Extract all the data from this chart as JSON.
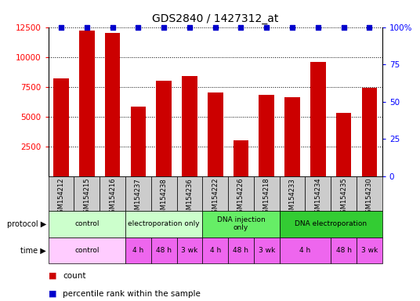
{
  "title": "GDS2840 / 1427312_at",
  "samples": [
    "GSM154212",
    "GSM154215",
    "GSM154216",
    "GSM154237",
    "GSM154238",
    "GSM154236",
    "GSM154222",
    "GSM154226",
    "GSM154218",
    "GSM154233",
    "GSM154234",
    "GSM154235",
    "GSM154230"
  ],
  "counts": [
    8200,
    12200,
    12000,
    5800,
    8000,
    8400,
    7000,
    3000,
    6800,
    6600,
    9600,
    5300,
    7400
  ],
  "bar_color": "#cc0000",
  "dot_color": "#0000cc",
  "ylim_left": [
    0,
    12500
  ],
  "ylim_right": [
    0,
    100
  ],
  "yticks_left": [
    2500,
    5000,
    7500,
    10000,
    12500
  ],
  "yticks_right": [
    0,
    25,
    50,
    75,
    100
  ],
  "protocol_defs": [
    {
      "label": "control",
      "start": 0,
      "end": 3,
      "color": "#ccffcc"
    },
    {
      "label": "electroporation only",
      "start": 3,
      "end": 6,
      "color": "#ccffcc"
    },
    {
      "label": "DNA injection\nonly",
      "start": 6,
      "end": 9,
      "color": "#66ee66"
    },
    {
      "label": "DNA electroporation",
      "start": 9,
      "end": 13,
      "color": "#33cc33"
    }
  ],
  "time_defs": [
    {
      "label": "control",
      "start": 0,
      "end": 3,
      "color": "#ffccff"
    },
    {
      "label": "4 h",
      "start": 3,
      "end": 4,
      "color": "#ee66ee"
    },
    {
      "label": "48 h",
      "start": 4,
      "end": 5,
      "color": "#ee66ee"
    },
    {
      "label": "3 wk",
      "start": 5,
      "end": 6,
      "color": "#ee66ee"
    },
    {
      "label": "4 h",
      "start": 6,
      "end": 7,
      "color": "#ee66ee"
    },
    {
      "label": "48 h",
      "start": 7,
      "end": 8,
      "color": "#ee66ee"
    },
    {
      "label": "3 wk",
      "start": 8,
      "end": 9,
      "color": "#ee66ee"
    },
    {
      "label": "4 h",
      "start": 9,
      "end": 11,
      "color": "#ee66ee"
    },
    {
      "label": "48 h",
      "start": 11,
      "end": 12,
      "color": "#ee66ee"
    },
    {
      "label": "3 wk",
      "start": 12,
      "end": 13,
      "color": "#ee66ee"
    }
  ],
  "sample_cell_color": "#cccccc",
  "legend_items": [
    {
      "color": "#cc0000",
      "label": "count"
    },
    {
      "color": "#0000cc",
      "label": "percentile rank within the sample"
    }
  ],
  "figsize": [
    5.36,
    3.84
  ],
  "dpi": 100
}
